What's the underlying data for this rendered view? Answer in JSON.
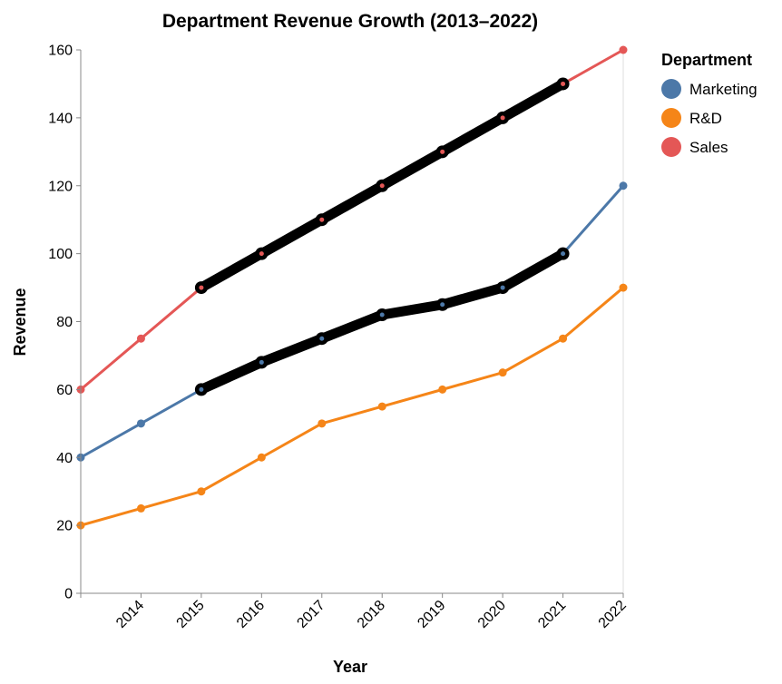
{
  "chart_data": {
    "type": "line",
    "title": "Department Revenue Growth (2013–2022)",
    "xlabel": "Year",
    "ylabel": "Revenue",
    "x": [
      2013,
      2014,
      2015,
      2016,
      2017,
      2018,
      2019,
      2020,
      2021,
      2022
    ],
    "x_tick_labels": [
      "2014",
      "2015",
      "2016",
      "2017",
      "2018",
      "2019",
      "2020",
      "2021",
      "2022"
    ],
    "ylim": [
      0,
      160
    ],
    "y_ticks": [
      0,
      20,
      40,
      60,
      80,
      100,
      120,
      140,
      160
    ],
    "grid": false,
    "legend_title": "Department",
    "legend_position": "right",
    "series": [
      {
        "name": "Marketing",
        "color": "#4c78a8",
        "values": [
          40,
          50,
          60,
          68,
          75,
          82,
          85,
          90,
          100,
          120
        ],
        "highlight_range": [
          2015,
          2021
        ]
      },
      {
        "name": "R&D",
        "color": "#f58518",
        "values": [
          20,
          25,
          30,
          40,
          50,
          55,
          60,
          65,
          75,
          90
        ]
      },
      {
        "name": "Sales",
        "color": "#e45756",
        "values": [
          60,
          75,
          90,
          100,
          110,
          120,
          130,
          140,
          150,
          160
        ],
        "highlight_range": [
          2015,
          2021
        ]
      }
    ],
    "highlight_color": "#000000"
  }
}
